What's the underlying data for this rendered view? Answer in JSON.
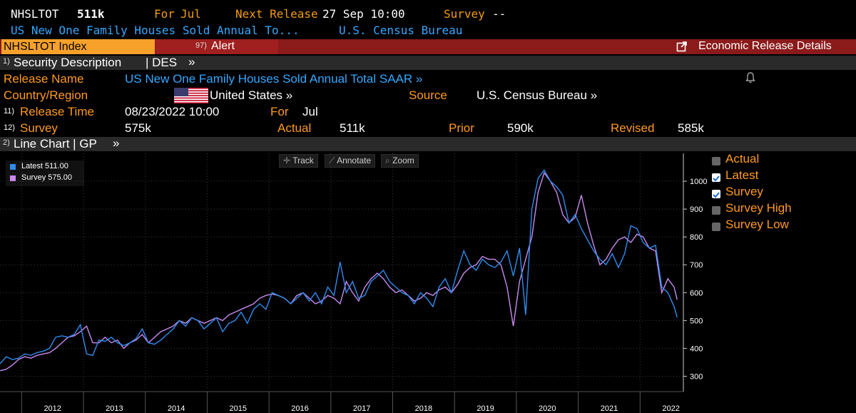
{
  "header": {
    "ticker": "NHSLTOT",
    "value": "511k",
    "for_label": "For",
    "for_value": "Jul",
    "next_release_label": "Next Release",
    "next_release_value": "27 Sep 10:00",
    "survey_label": "Survey",
    "survey_value": "--",
    "description": "US New One Family Houses Sold Annual To...",
    "source": "U.S. Census Bureau"
  },
  "command_bar": {
    "index_label": "NHSLTOT Index",
    "alert_num": "97)",
    "alert_label": "Alert",
    "econ_details_label": "Economic Release Details"
  },
  "security_desc": {
    "num": "1)",
    "label": "Security Description",
    "code": "| DES",
    "arrow": "»"
  },
  "details": {
    "release_name_label": "Release Name",
    "release_name_value": "US New One Family Houses Sold Annual Total SAAR »",
    "country_label": "Country/Region",
    "country_value": "United States »",
    "source_label": "Source",
    "source_value": "U.S. Census Bureau »",
    "release_time_num": "11)",
    "release_time_label": "Release Time",
    "release_time_value": "08/23/2022 10:00",
    "for_label": "For",
    "for_value": "Jul",
    "survey_num": "12)",
    "survey_label": "Survey",
    "survey_value": "575k",
    "actual_label": "Actual",
    "actual_value": "511k",
    "prior_label": "Prior",
    "prior_value": "590k",
    "revised_label": "Revised",
    "revised_value": "585k"
  },
  "line_chart_section": {
    "num": "2)",
    "label": "Line Chart | GP",
    "arrow": "»"
  },
  "toolbar": {
    "track": "Track",
    "annotate": "Annotate",
    "zoom": "Zoom"
  },
  "chart_legend": {
    "latest": "Latest 511.00",
    "survey": "Survey 575.00"
  },
  "series_toggles": [
    {
      "label": "Actual",
      "checked": false
    },
    {
      "label": "Latest",
      "checked": true
    },
    {
      "label": "Survey",
      "checked": true
    },
    {
      "label": "Survey High",
      "checked": false
    },
    {
      "label": "Survey Low",
      "checked": false
    }
  ],
  "colors": {
    "latest": "#2e8cf0",
    "survey": "#c98af0",
    "orange": "#f39c12",
    "red_bar": "#8b1a1a"
  },
  "chart_data": {
    "type": "line",
    "title": "US New One Family Houses Sold Annual Total SAAR",
    "xlabel": "",
    "ylabel": "",
    "ylim": [
      250,
      1100
    ],
    "xlim": [
      2011.6,
      2022.65
    ],
    "yticks": [
      "300",
      "400",
      "500",
      "600",
      "700",
      "800",
      "900",
      "1000"
    ],
    "xticks": [
      "2012",
      "2013",
      "2014",
      "2015",
      "2016",
      "2017",
      "2018",
      "2019",
      "2020",
      "2021",
      "2022"
    ],
    "series": [
      {
        "name": "Latest",
        "x": [
          2011.6,
          2011.7,
          2011.8,
          2011.9,
          2012.0,
          2012.1,
          2012.2,
          2012.3,
          2012.4,
          2012.5,
          2012.6,
          2012.7,
          2012.8,
          2012.9,
          2013.0,
          2013.1,
          2013.2,
          2013.3,
          2013.4,
          2013.5,
          2013.6,
          2013.7,
          2013.8,
          2013.9,
          2014.0,
          2014.1,
          2014.2,
          2014.3,
          2014.4,
          2014.5,
          2014.6,
          2014.7,
          2014.8,
          2014.9,
          2015.0,
          2015.1,
          2015.2,
          2015.3,
          2015.4,
          2015.5,
          2015.6,
          2015.7,
          2015.8,
          2015.9,
          2016.0,
          2016.1,
          2016.2,
          2016.3,
          2016.4,
          2016.5,
          2016.6,
          2016.7,
          2016.8,
          2016.9,
          2017.0,
          2017.1,
          2017.2,
          2017.3,
          2017.4,
          2017.5,
          2017.6,
          2017.7,
          2017.8,
          2017.9,
          2018.0,
          2018.1,
          2018.2,
          2018.3,
          2018.4,
          2018.5,
          2018.6,
          2018.7,
          2018.8,
          2018.9,
          2019.0,
          2019.1,
          2019.2,
          2019.3,
          2019.4,
          2019.5,
          2019.6,
          2019.7,
          2019.8,
          2019.9,
          2020.0,
          2020.1,
          2020.2,
          2020.3,
          2020.4,
          2020.5,
          2020.6,
          2020.7,
          2020.8,
          2020.9,
          2021.0,
          2021.1,
          2021.2,
          2021.3,
          2021.4,
          2021.5,
          2021.6,
          2021.7,
          2021.8,
          2021.9,
          2022.0,
          2022.1,
          2022.2,
          2022.3,
          2022.4,
          2022.5,
          2022.55
        ],
        "values": [
          345,
          370,
          360,
          365,
          380,
          375,
          385,
          390,
          400,
          440,
          445,
          440,
          450,
          485,
          380,
          375,
          430,
          425,
          440,
          420,
          410,
          420,
          435,
          470,
          420,
          415,
          430,
          450,
          470,
          500,
          480,
          510,
          500,
          470,
          490,
          510,
          460,
          490,
          500,
          530,
          490,
          540,
          560,
          540,
          600,
          590,
          580,
          560,
          580,
          600,
          570,
          600,
          560,
          620,
          590,
          710,
          600,
          640,
          580,
          590,
          640,
          660,
          680,
          640,
          620,
          600,
          590,
          560,
          600,
          580,
          550,
          620,
          650,
          600,
          680,
          750,
          700,
          680,
          720,
          700,
          690,
          710,
          750,
          660,
          760,
          520,
          900,
          1010,
          1040,
          1000,
          980,
          950,
          850,
          880,
          830,
          790,
          750,
          720,
          700,
          740,
          690,
          740,
          840,
          830,
          780,
          760,
          770,
          620,
          600,
          550,
          511
        ]
      },
      {
        "name": "Survey",
        "x": [
          2011.6,
          2011.7,
          2011.8,
          2011.9,
          2012.0,
          2012.1,
          2012.2,
          2012.3,
          2012.4,
          2012.5,
          2012.6,
          2012.7,
          2012.8,
          2012.9,
          2013.0,
          2013.1,
          2013.2,
          2013.3,
          2013.4,
          2013.5,
          2013.6,
          2013.7,
          2013.8,
          2013.9,
          2014.0,
          2014.1,
          2014.2,
          2014.3,
          2014.4,
          2014.5,
          2014.6,
          2014.7,
          2014.8,
          2014.9,
          2015.0,
          2015.1,
          2015.2,
          2015.3,
          2015.4,
          2015.5,
          2015.6,
          2015.7,
          2015.8,
          2015.9,
          2016.0,
          2016.1,
          2016.2,
          2016.3,
          2016.4,
          2016.5,
          2016.6,
          2016.7,
          2016.8,
          2016.9,
          2017.0,
          2017.1,
          2017.2,
          2017.3,
          2017.4,
          2017.5,
          2017.6,
          2017.7,
          2017.8,
          2017.9,
          2018.0,
          2018.1,
          2018.2,
          2018.3,
          2018.4,
          2018.5,
          2018.6,
          2018.7,
          2018.8,
          2018.9,
          2019.0,
          2019.1,
          2019.2,
          2019.3,
          2019.4,
          2019.5,
          2019.6,
          2019.7,
          2019.8,
          2019.9,
          2020.0,
          2020.1,
          2020.2,
          2020.3,
          2020.4,
          2020.5,
          2020.6,
          2020.7,
          2020.8,
          2020.9,
          2021.0,
          2021.1,
          2021.2,
          2021.3,
          2021.4,
          2021.5,
          2021.6,
          2021.7,
          2021.8,
          2021.9,
          2022.0,
          2022.1,
          2022.2,
          2022.3,
          2022.4,
          2022.5,
          2022.55
        ],
        "values": [
          320,
          325,
          340,
          360,
          370,
          365,
          375,
          380,
          385,
          400,
          420,
          440,
          445,
          460,
          480,
          420,
          420,
          440,
          420,
          430,
          400,
          420,
          430,
          450,
          420,
          440,
          460,
          470,
          480,
          500,
          490,
          510,
          500,
          490,
          500,
          510,
          500,
          520,
          530,
          540,
          550,
          560,
          580,
          590,
          595,
          590,
          580,
          560,
          590,
          600,
          580,
          560,
          570,
          590,
          580,
          560,
          640,
          600,
          570,
          620,
          650,
          670,
          650,
          620,
          600,
          610,
          590,
          570,
          580,
          600,
          590,
          610,
          620,
          600,
          630,
          670,
          690,
          700,
          730,
          720,
          720,
          700,
          620,
          480,
          640,
          720,
          800,
          960,
          1030,
          1000,
          960,
          880,
          850,
          870,
          950,
          850,
          770,
          700,
          720,
          760,
          790,
          800,
          780,
          810,
          800,
          760,
          750,
          600,
          650,
          620,
          575
        ]
      }
    ]
  }
}
